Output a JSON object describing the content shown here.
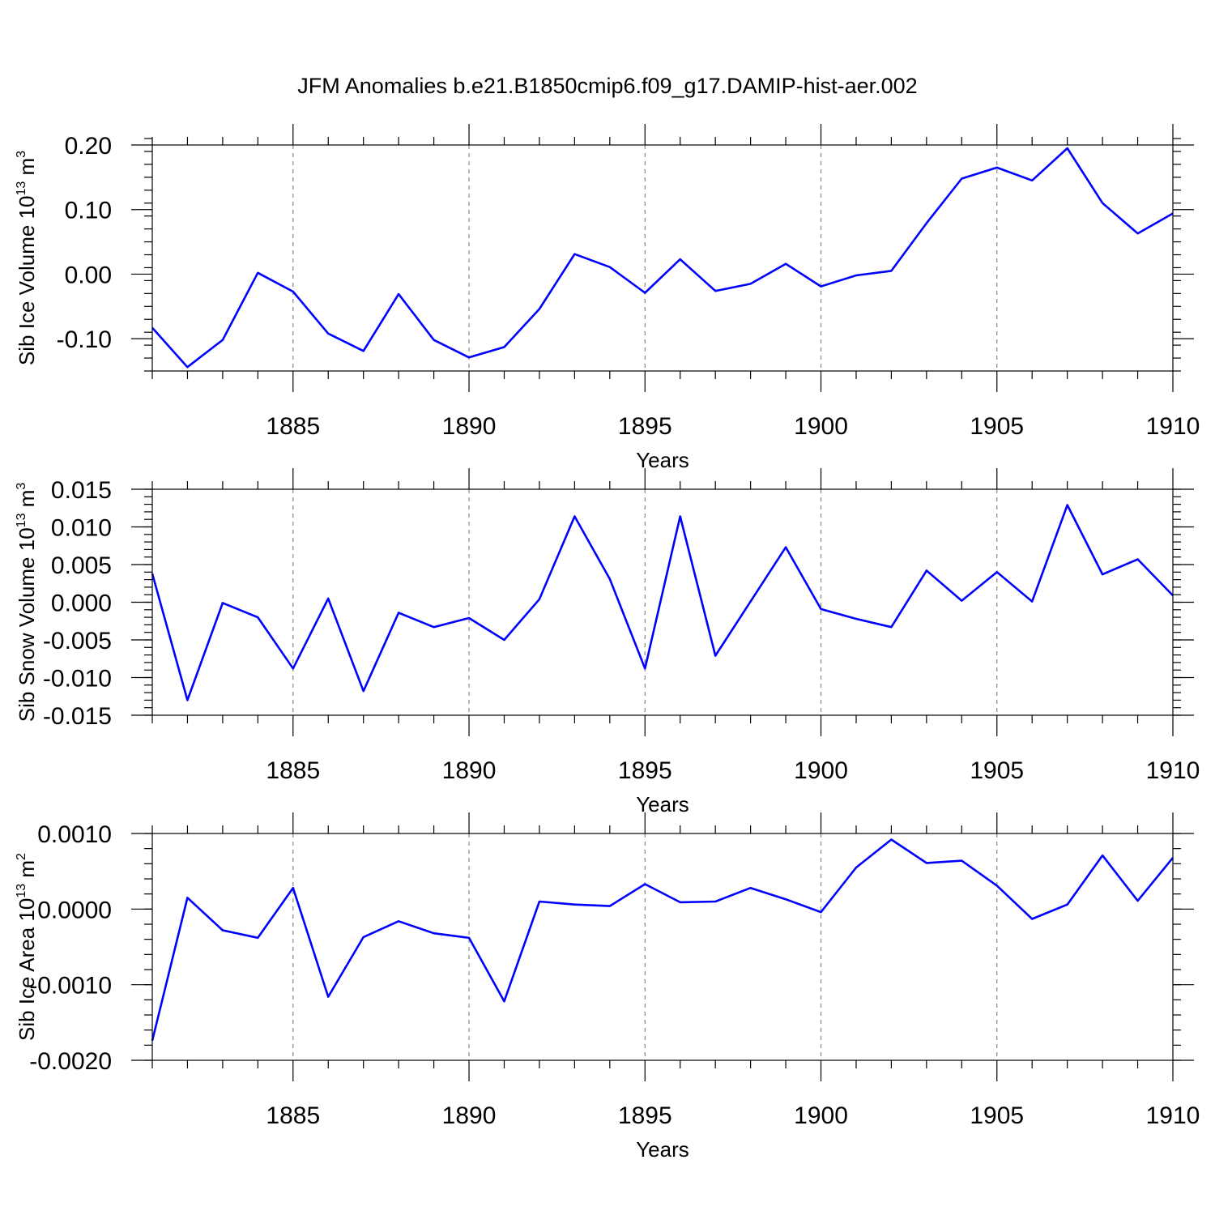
{
  "title": "JFM Anomalies b.e21.B1850cmip6.f09_g17.DAMIP-hist-aer.002",
  "chart_data": [
    {
      "type": "line",
      "id": "ice-volume",
      "ylabel_main": "Sib Ice Volume 10",
      "ylabel_sup": "13",
      "ylabel_unit": "m",
      "ylabel_unit_sup": "3",
      "xlabel": "Years",
      "xlim": [
        1881,
        1910
      ],
      "ylim": [
        -0.15,
        0.2
      ],
      "xticks": [
        1885,
        1890,
        1895,
        1900,
        1905,
        1910
      ],
      "yticks": [
        -0.1,
        0.0,
        0.1,
        0.2
      ],
      "ytick_labels": [
        "-0.10",
        "0.00",
        "0.10",
        "0.20"
      ],
      "minor_y_step": 0.02,
      "grid_x": true,
      "line_color": "#0000ff",
      "x": [
        1881,
        1882,
        1883,
        1884,
        1885,
        1886,
        1887,
        1888,
        1889,
        1890,
        1891,
        1892,
        1893,
        1894,
        1895,
        1896,
        1897,
        1898,
        1899,
        1900,
        1901,
        1902,
        1903,
        1904,
        1905,
        1906,
        1907,
        1908,
        1909,
        1910
      ],
      "values": [
        -0.083,
        -0.144,
        -0.102,
        0.002,
        -0.027,
        -0.092,
        -0.119,
        -0.031,
        -0.102,
        -0.129,
        -0.113,
        -0.054,
        0.031,
        0.011,
        -0.029,
        0.023,
        -0.026,
        -0.015,
        0.016,
        -0.019,
        -0.002,
        0.005,
        0.079,
        0.148,
        0.165,
        0.145,
        0.195,
        0.11,
        0.063,
        0.094
      ]
    },
    {
      "type": "line",
      "id": "snow-volume",
      "ylabel_main": "Sib Snow Volume 10",
      "ylabel_sup": "13",
      "ylabel_unit": "m",
      "ylabel_unit_sup": "3",
      "xlabel": "Years",
      "xlim": [
        1881,
        1910
      ],
      "ylim": [
        -0.015,
        0.015
      ],
      "xticks": [
        1885,
        1890,
        1895,
        1900,
        1905,
        1910
      ],
      "yticks": [
        -0.015,
        -0.01,
        -0.005,
        0.0,
        0.005,
        0.01,
        0.015
      ],
      "ytick_labels": [
        "-0.015",
        "-0.010",
        "-0.005",
        "0.000",
        "0.005",
        "0.010",
        "0.015"
      ],
      "minor_y_step": 0.001,
      "grid_x": true,
      "line_color": "#0000ff",
      "x": [
        1881,
        1882,
        1883,
        1884,
        1885,
        1886,
        1887,
        1888,
        1889,
        1890,
        1891,
        1892,
        1893,
        1894,
        1895,
        1896,
        1897,
        1898,
        1899,
        1900,
        1901,
        1902,
        1903,
        1904,
        1905,
        1906,
        1907,
        1908,
        1909,
        1910
      ],
      "values": [
        0.0038,
        -0.013,
        -0.0001,
        -0.002,
        -0.0088,
        0.0005,
        -0.0118,
        -0.0014,
        -0.0033,
        -0.0021,
        -0.005,
        0.0004,
        0.0114,
        0.0031,
        -0.0088,
        0.0114,
        -0.0071,
        0.0001,
        0.0073,
        -0.0009,
        -0.0022,
        -0.0033,
        0.0042,
        0.0002,
        0.004,
        0.0001,
        0.0129,
        0.0037,
        0.0057,
        0.0009
      ]
    },
    {
      "type": "line",
      "id": "ice-area",
      "ylabel_main": "Sib Ice Area 10",
      "ylabel_sup": "13",
      "ylabel_unit": "m",
      "ylabel_unit_sup": "2",
      "xlabel": "Years",
      "xlim": [
        1881,
        1910
      ],
      "ylim": [
        -0.002,
        0.001
      ],
      "xticks": [
        1885,
        1890,
        1895,
        1900,
        1905,
        1910
      ],
      "yticks": [
        -0.002,
        -0.001,
        0.0,
        0.001
      ],
      "ytick_labels": [
        "-0.0020",
        "-0.0010",
        "0.0000",
        "0.0010"
      ],
      "minor_y_step": 0.0002,
      "grid_x": true,
      "line_color": "#0000ff",
      "x": [
        1881,
        1882,
        1883,
        1884,
        1885,
        1886,
        1887,
        1888,
        1889,
        1890,
        1891,
        1892,
        1893,
        1894,
        1895,
        1896,
        1897,
        1898,
        1899,
        1900,
        1901,
        1902,
        1903,
        1904,
        1905,
        1906,
        1907,
        1908,
        1909,
        1910
      ],
      "values": [
        -0.00174,
        0.00015,
        -0.00028,
        -0.00038,
        0.00028,
        -0.00116,
        -0.00037,
        -0.00016,
        -0.00032,
        -0.00038,
        -0.00122,
        0.0001,
        6e-05,
        4e-05,
        0.00033,
        9e-05,
        0.0001,
        0.00028,
        0.00013,
        -4e-05,
        0.00055,
        0.00092,
        0.00061,
        0.00064,
        0.00031,
        -0.00013,
        6e-05,
        0.00071,
        0.00011,
        0.00068
      ]
    }
  ]
}
